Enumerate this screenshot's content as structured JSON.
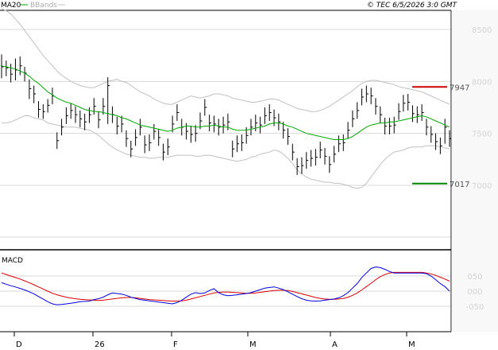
{
  "header": {
    "legend_ma": "MA20",
    "legend_bbands": "BBands",
    "timestamp": "© TEC 6/5/2026 3:0 GMT"
  },
  "colors": {
    "price_bars": "#000000",
    "ma20": "#00aa00",
    "bbands": "#c0c0c0",
    "resistance": "#cc0000",
    "support": "#008800",
    "macd": "#0000dd",
    "signal": "#dd0000",
    "grid": "#d8d8d8"
  },
  "chart_data": [
    {
      "type": "bar",
      "subtype": "ohlc",
      "ylim": [
        6500,
        8800
      ],
      "y_ticks": [
        8500,
        8000,
        7500,
        7000
      ],
      "y_tick_labels": [
        "8500",
        "8000",
        "7500",
        "7000"
      ],
      "x_tick_labels": [
        "D",
        "26",
        "F",
        "M",
        "A",
        "M"
      ],
      "levels": [
        {
          "label": "7947",
          "value": 7947,
          "color": "#cc0000"
        },
        {
          "label": "7017",
          "value": 7017,
          "color": "#008800"
        }
      ],
      "close": [
        8140,
        8130,
        8070,
        8110,
        8150,
        8080,
        7930,
        7880,
        7730,
        7710,
        7770,
        7860,
        7430,
        7560,
        7670,
        7720,
        7680,
        7640,
        7610,
        7680,
        7760,
        7630,
        7760,
        7960,
        7680,
        7570,
        7590,
        7450,
        7350,
        7460,
        7560,
        7390,
        7410,
        7520,
        7460,
        7320,
        7370,
        7590,
        7700,
        7560,
        7520,
        7490,
        7500,
        7620,
        7750,
        7600,
        7590,
        7560,
        7580,
        7610,
        7350,
        7400,
        7410,
        7480,
        7560,
        7600,
        7580,
        7670,
        7700,
        7650,
        7610,
        7530,
        7470,
        7320,
        7180,
        7190,
        7240,
        7260,
        7270,
        7340,
        7280,
        7200,
        7300,
        7400,
        7410,
        7530,
        7640,
        7720,
        7850,
        7880,
        7860,
        7760,
        7680,
        7570,
        7570,
        7580,
        7710,
        7790,
        7800,
        7690,
        7680,
        7700,
        7560,
        7490,
        7420,
        7380,
        7560,
        7450
      ],
      "ranges": [
        [
          8030,
          8260
        ],
        [
          8050,
          8200
        ],
        [
          7990,
          8170
        ],
        [
          8010,
          8220
        ],
        [
          8060,
          8240
        ],
        [
          8000,
          8140
        ],
        [
          7830,
          8020
        ],
        [
          7790,
          7960
        ],
        [
          7650,
          7810
        ],
        [
          7640,
          7780
        ],
        [
          7700,
          7830
        ],
        [
          7780,
          7940
        ],
        [
          7350,
          7510
        ],
        [
          7480,
          7640
        ],
        [
          7590,
          7750
        ],
        [
          7640,
          7790
        ],
        [
          7600,
          7760
        ],
        [
          7560,
          7720
        ],
        [
          7530,
          7690
        ],
        [
          7600,
          7750
        ],
        [
          7680,
          7840
        ],
        [
          7550,
          7710
        ],
        [
          7680,
          7840
        ],
        [
          7590,
          8040
        ],
        [
          7600,
          7760
        ],
        [
          7490,
          7660
        ],
        [
          7510,
          7670
        ],
        [
          7370,
          7530
        ],
        [
          7270,
          7430
        ],
        [
          7380,
          7540
        ],
        [
          7480,
          7640
        ],
        [
          7310,
          7480
        ],
        [
          7330,
          7490
        ],
        [
          7440,
          7590
        ],
        [
          7380,
          7540
        ],
        [
          7240,
          7400
        ],
        [
          7290,
          7450
        ],
        [
          7510,
          7670
        ],
        [
          7620,
          7780
        ],
        [
          7480,
          7640
        ],
        [
          7440,
          7600
        ],
        [
          7410,
          7570
        ],
        [
          7420,
          7580
        ],
        [
          7540,
          7700
        ],
        [
          7670,
          7830
        ],
        [
          7520,
          7680
        ],
        [
          7510,
          7670
        ],
        [
          7480,
          7640
        ],
        [
          7500,
          7660
        ],
        [
          7530,
          7690
        ],
        [
          7270,
          7430
        ],
        [
          7320,
          7480
        ],
        [
          7330,
          7490
        ],
        [
          7400,
          7560
        ],
        [
          7480,
          7640
        ],
        [
          7520,
          7680
        ],
        [
          7500,
          7660
        ],
        [
          7590,
          7750
        ],
        [
          7620,
          7780
        ],
        [
          7570,
          7730
        ],
        [
          7530,
          7690
        ],
        [
          7450,
          7610
        ],
        [
          7390,
          7550
        ],
        [
          7240,
          7400
        ],
        [
          7100,
          7260
        ],
        [
          7110,
          7270
        ],
        [
          7160,
          7320
        ],
        [
          7180,
          7340
        ],
        [
          7190,
          7350
        ],
        [
          7260,
          7420
        ],
        [
          7200,
          7360
        ],
        [
          7120,
          7280
        ],
        [
          7220,
          7380
        ],
        [
          7320,
          7480
        ],
        [
          7330,
          7490
        ],
        [
          7450,
          7610
        ],
        [
          7560,
          7720
        ],
        [
          7640,
          7800
        ],
        [
          7770,
          7930
        ],
        [
          7800,
          7960
        ],
        [
          7780,
          7940
        ],
        [
          7680,
          7840
        ],
        [
          7600,
          7760
        ],
        [
          7490,
          7650
        ],
        [
          7490,
          7650
        ],
        [
          7500,
          7660
        ],
        [
          7630,
          7790
        ],
        [
          7710,
          7870
        ],
        [
          7720,
          7880
        ],
        [
          7610,
          7770
        ],
        [
          7600,
          7760
        ],
        [
          7620,
          7780
        ],
        [
          7480,
          7640
        ],
        [
          7410,
          7570
        ],
        [
          7340,
          7500
        ],
        [
          7300,
          7460
        ],
        [
          7400,
          7640
        ],
        [
          7370,
          7530
        ]
      ],
      "ma20": [
        8150,
        8140,
        8130,
        8120,
        8100,
        8080,
        8050,
        8010,
        7980,
        7940,
        7900,
        7870,
        7840,
        7820,
        7800,
        7790,
        7770,
        7750,
        7730,
        7720,
        7710,
        7710,
        7700,
        7690,
        7680,
        7670,
        7650,
        7640,
        7620,
        7600,
        7580,
        7570,
        7560,
        7550,
        7540,
        7530,
        7520,
        7530,
        7550,
        7560,
        7570,
        7570,
        7560,
        7560,
        7570,
        7570,
        7580,
        7570,
        7560,
        7560,
        7540,
        7530,
        7530,
        7530,
        7540,
        7550,
        7560,
        7570,
        7590,
        7600,
        7600,
        7590,
        7570,
        7560,
        7540,
        7520,
        7500,
        7490,
        7480,
        7470,
        7460,
        7450,
        7440,
        7440,
        7440,
        7450,
        7470,
        7500,
        7530,
        7560,
        7580,
        7590,
        7600,
        7600,
        7610,
        7610,
        7620,
        7630,
        7640,
        7650,
        7660,
        7670,
        7660,
        7640,
        7620,
        7600,
        7580,
        7560
      ],
      "bb_upper": [
        8700,
        8680,
        8650,
        8600,
        8550,
        8490,
        8430,
        8370,
        8310,
        8250,
        8200,
        8150,
        8100,
        8060,
        8030,
        8000,
        7980,
        7960,
        7950,
        7940,
        7940,
        7960,
        7980,
        8000,
        8010,
        8020,
        8000,
        7990,
        7960,
        7930,
        7900,
        7880,
        7860,
        7830,
        7810,
        7790,
        7780,
        7780,
        7800,
        7820,
        7840,
        7860,
        7850,
        7840,
        7850,
        7860,
        7880,
        7880,
        7870,
        7860,
        7840,
        7830,
        7820,
        7810,
        7800,
        7800,
        7810,
        7820,
        7830,
        7830,
        7820,
        7800,
        7780,
        7760,
        7740,
        7730,
        7720,
        7710,
        7710,
        7720,
        7740,
        7760,
        7790,
        7820,
        7850,
        7880,
        7910,
        7950,
        7980,
        8000,
        8010,
        8010,
        8000,
        7990,
        7980,
        7970,
        7950,
        7940,
        7930,
        7920,
        7910,
        7900,
        7880,
        7860,
        7840,
        7820,
        7800,
        7780
      ],
      "bb_lower": [
        7600,
        7600,
        7610,
        7630,
        7650,
        7670,
        7670,
        7650,
        7640,
        7630,
        7600,
        7590,
        7580,
        7570,
        7560,
        7560,
        7560,
        7550,
        7540,
        7530,
        7510,
        7480,
        7440,
        7400,
        7370,
        7340,
        7320,
        7300,
        7290,
        7280,
        7270,
        7270,
        7260,
        7260,
        7270,
        7270,
        7270,
        7280,
        7290,
        7290,
        7290,
        7290,
        7280,
        7280,
        7290,
        7290,
        7280,
        7270,
        7260,
        7250,
        7240,
        7230,
        7240,
        7250,
        7270,
        7280,
        7300,
        7310,
        7320,
        7340,
        7330,
        7300,
        7260,
        7210,
        7150,
        7110,
        7080,
        7060,
        7050,
        7040,
        7030,
        7030,
        7020,
        7020,
        7010,
        7000,
        6980,
        6970,
        6980,
        7020,
        7080,
        7140,
        7200,
        7250,
        7290,
        7320,
        7330,
        7340,
        7360,
        7370,
        7370,
        7370,
        7380,
        7380,
        7380,
        7370,
        7360,
        7350
      ]
    },
    {
      "type": "line",
      "title": "MACD",
      "ylim": [
        -100,
        100
      ],
      "y_ticks": [
        50,
        0,
        -50
      ],
      "y_tick_labels": [
        "050",
        "000",
        "-050"
      ],
      "series": [
        {
          "values": [
            28,
            23,
            18,
            14,
            9,
            4,
            -2,
            -9,
            -18,
            -26,
            -35,
            -42,
            -45,
            -44,
            -42,
            -40,
            -38,
            -35,
            -34,
            -33,
            -28,
            -25,
            -20,
            -12,
            -6,
            -8,
            -10,
            -14,
            -20,
            -24,
            -28,
            -30,
            -32,
            -34,
            -36,
            -38,
            -40,
            -42,
            -38,
            -30,
            -20,
            -10,
            -5,
            -8,
            -6,
            2,
            8,
            -5,
            -12,
            -15,
            -14,
            -12,
            -10,
            -8,
            -5,
            0,
            5,
            10,
            12,
            14,
            10,
            5,
            -2,
            -10,
            -18,
            -25,
            -30,
            -32,
            -33,
            -32,
            -30,
            -28,
            -26,
            -22,
            -15,
            -5,
            10,
            25,
            45,
            60,
            75,
            80,
            78,
            72,
            65,
            60,
            60,
            60,
            60,
            60,
            60,
            60,
            58,
            50,
            38,
            25,
            15,
            0
          ]
        },
        {
          "values": [
            60,
            55,
            50,
            45,
            40,
            34,
            28,
            21,
            14,
            7,
            0,
            -7,
            -12,
            -16,
            -20,
            -23,
            -25,
            -27,
            -28,
            -29,
            -30,
            -31,
            -30,
            -28,
            -26,
            -24,
            -22,
            -21,
            -21,
            -22,
            -24,
            -26,
            -28,
            -29,
            -30,
            -31,
            -32,
            -33,
            -33,
            -32,
            -30,
            -26,
            -22,
            -18,
            -14,
            -10,
            -6,
            -4,
            -3,
            -3,
            -4,
            -5,
            -6,
            -7,
            -7,
            -6,
            -4,
            -2,
            0,
            2,
            3,
            3,
            2,
            -1,
            -5,
            -9,
            -13,
            -17,
            -21,
            -24,
            -26,
            -27,
            -27,
            -26,
            -24,
            -20,
            -14,
            -6,
            4,
            15,
            26,
            38,
            48,
            55,
            60,
            62,
            62,
            62,
            62,
            62,
            62,
            62,
            60,
            57,
            52,
            46,
            40,
            33
          ]
        }
      ]
    }
  ]
}
